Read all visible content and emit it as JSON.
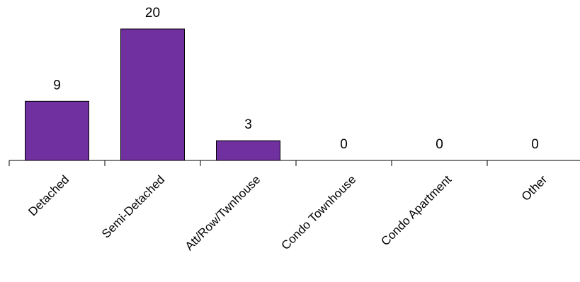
{
  "chart_data": {
    "type": "bar",
    "categories": [
      "Detached",
      "Semi-Detached",
      "Att/Row/Twnhouse",
      "Condo Townhouse",
      "Condo Apartment",
      "Other"
    ],
    "values": [
      9,
      20,
      3,
      0,
      0,
      0
    ],
    "title": "",
    "xlabel": "",
    "ylabel": "",
    "ylim": [
      0,
      20
    ],
    "grid": false,
    "bar_color": "#7030A0",
    "data_labels": true,
    "y_axis_visible": false
  }
}
